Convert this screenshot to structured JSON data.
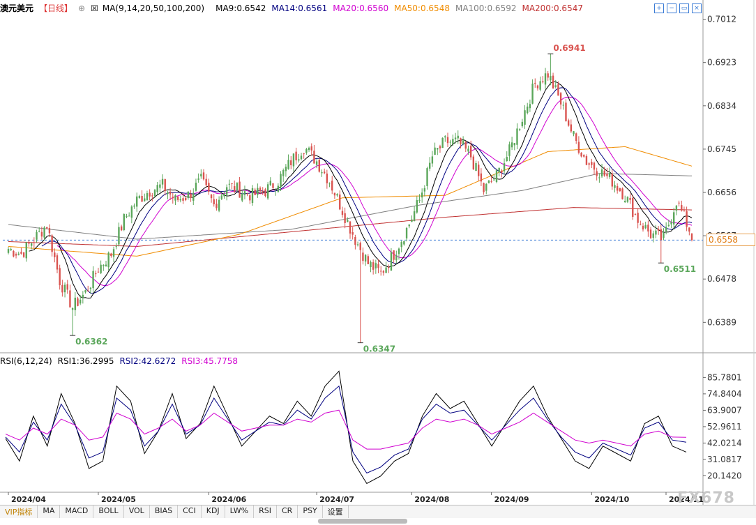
{
  "header": {
    "symbol": "澳元美元",
    "period": "【日线】",
    "add_icon": "plus-circle-icon",
    "ma_params": "MA(9,14,20,50,100,200)",
    "ma9": "MA9:0.6542",
    "ma14": "MA14:0.6561",
    "ma20": "MA20:0.6560",
    "ma50": "MA50:0.6548",
    "ma100": "MA100:0.6592",
    "ma200": "MA200:0.6547"
  },
  "rsi_header": {
    "params": "RSI(6,12,24)",
    "rsi1": "RSI1:36.2995",
    "rsi2": "RSI2:42.6272",
    "rsi3": "RSI3:45.7758"
  },
  "window_icons": [
    "zoom-in-icon",
    "zoom-out-icon",
    "restore-icon",
    "close-icon"
  ],
  "toolbar": [
    "VIP指标",
    "MA",
    "MACD",
    "BOLL",
    "VOL",
    "BIAS",
    "CCI",
    "KDJ",
    "LW%",
    "RSI",
    "CR",
    "PSY",
    "设置"
  ],
  "watermark": "FX678",
  "current_price": "0.6558",
  "colors": {
    "up": "#5aa65a",
    "down": "#d9534f",
    "ma9": "#000000",
    "ma14": "#000080",
    "ma20": "#d000d0",
    "ma50": "#f08c00",
    "ma100": "#808080",
    "ma200": "#c03030",
    "rsi1": "#000000",
    "rsi2": "#000080",
    "rsi3": "#d000d0"
  },
  "chart_data": [
    {
      "type": "candlestick",
      "y_ticks": [
        "0.7012",
        "0.6923",
        "0.6834",
        "0.6745",
        "0.6656",
        "0.6567",
        "0.6478",
        "0.6389"
      ],
      "ylim": [
        0.6335,
        0.702
      ],
      "x_ticks": [
        "2024/04",
        "2024/05",
        "2024/06",
        "2024/07",
        "2024/08",
        "2024/09",
        "2024/10",
        "2024/11"
      ],
      "annotations": [
        {
          "text": "0.6941",
          "value": 0.6941
        },
        {
          "text": "0.6362",
          "value": 0.6362
        },
        {
          "text": "0.6347",
          "value": 0.6347
        },
        {
          "text": "0.6511",
          "value": 0.6511
        }
      ],
      "close_anchors": [
        [
          0,
          0.654
        ],
        [
          5,
          0.653
        ],
        [
          10,
          0.656
        ],
        [
          15,
          0.659
        ],
        [
          20,
          0.6475
        ],
        [
          25,
          0.642
        ],
        [
          30,
          0.645
        ],
        [
          35,
          0.65
        ],
        [
          40,
          0.653
        ],
        [
          45,
          0.66
        ],
        [
          50,
          0.664
        ],
        [
          55,
          0.666
        ],
        [
          60,
          0.667
        ],
        [
          65,
          0.664
        ],
        [
          70,
          0.665
        ],
        [
          75,
          0.668
        ],
        [
          80,
          0.663
        ],
        [
          85,
          0.667
        ],
        [
          90,
          0.666
        ],
        [
          95,
          0.665
        ],
        [
          100,
          0.666
        ],
        [
          105,
          0.668
        ],
        [
          110,
          0.672
        ],
        [
          115,
          0.675
        ],
        [
          120,
          0.672
        ],
        [
          125,
          0.668
        ],
        [
          130,
          0.662
        ],
        [
          135,
          0.656
        ],
        [
          140,
          0.651
        ],
        [
          145,
          0.649
        ],
        [
          150,
          0.653
        ],
        [
          155,
          0.658
        ],
        [
          160,
          0.664
        ],
        [
          165,
          0.673
        ],
        [
          170,
          0.676
        ],
        [
          175,
          0.676
        ],
        [
          180,
          0.673
        ],
        [
          185,
          0.666
        ],
        [
          190,
          0.669
        ],
        [
          195,
          0.674
        ],
        [
          200,
          0.681
        ],
        [
          205,
          0.688
        ],
        [
          210,
          0.69
        ],
        [
          215,
          0.684
        ],
        [
          220,
          0.677
        ],
        [
          225,
          0.672
        ],
        [
          230,
          0.67
        ],
        [
          235,
          0.668
        ],
        [
          240,
          0.665
        ],
        [
          245,
          0.66
        ],
        [
          250,
          0.657
        ],
        [
          255,
          0.656
        ],
        [
          260,
          0.664
        ],
        [
          265,
          0.658
        ],
        [
          266,
          0.6558
        ]
      ],
      "ma_anchors": {
        "ma50": [
          [
            0,
            0.6545
          ],
          [
            50,
            0.6525
          ],
          [
            90,
            0.657
          ],
          [
            130,
            0.6645
          ],
          [
            170,
            0.665
          ],
          [
            210,
            0.674
          ],
          [
            240,
            0.675
          ],
          [
            266,
            0.671
          ]
        ],
        "ma100": [
          [
            0,
            0.659
          ],
          [
            50,
            0.656
          ],
          [
            110,
            0.658
          ],
          [
            160,
            0.663
          ],
          [
            200,
            0.666
          ],
          [
            230,
            0.6695
          ],
          [
            266,
            0.669
          ]
        ],
        "ma200": [
          [
            0,
            0.6555
          ],
          [
            50,
            0.6545
          ],
          [
            120,
            0.658
          ],
          [
            170,
            0.6605
          ],
          [
            220,
            0.6625
          ],
          [
            266,
            0.662
          ]
        ]
      },
      "current_value": 0.6558
    },
    {
      "type": "line",
      "title": "RSI(6,12,24)",
      "y_ticks": [
        "85.7801",
        "74.8404",
        "63.9007",
        "52.9611",
        "42.0214",
        "31.0817",
        "20.1420"
      ],
      "ylim": [
        12,
        92
      ],
      "series": [
        {
          "name": "RSI1",
          "values": [
            45,
            30,
            60,
            40,
            75,
            55,
            25,
            30,
            80,
            70,
            35,
            50,
            75,
            45,
            55,
            80,
            60,
            40,
            50,
            60,
            55,
            70,
            60,
            80,
            90,
            30,
            15,
            20,
            30,
            35,
            60,
            75,
            65,
            70,
            55,
            40,
            55,
            70,
            80,
            60,
            45,
            30,
            25,
            40,
            35,
            30,
            55,
            60,
            40,
            36
          ]
        },
        {
          "name": "RSI2",
          "values": [
            46,
            36,
            56,
            44,
            68,
            54,
            32,
            36,
            72,
            64,
            40,
            50,
            68,
            48,
            54,
            72,
            58,
            44,
            50,
            56,
            54,
            64,
            58,
            72,
            80,
            36,
            22,
            26,
            34,
            38,
            58,
            68,
            62,
            64,
            54,
            44,
            54,
            64,
            72,
            58,
            46,
            36,
            32,
            42,
            38,
            34,
            52,
            56,
            44,
            42.6
          ]
        },
        {
          "name": "RSI3",
          "values": [
            48,
            44,
            52,
            48,
            58,
            54,
            44,
            46,
            62,
            58,
            48,
            52,
            58,
            50,
            54,
            62,
            56,
            50,
            52,
            54,
            54,
            58,
            56,
            62,
            64,
            44,
            38,
            38,
            40,
            42,
            52,
            58,
            56,
            58,
            54,
            48,
            52,
            56,
            62,
            56,
            50,
            44,
            42,
            44,
            42,
            40,
            48,
            50,
            46,
            45.8
          ]
        }
      ]
    }
  ]
}
